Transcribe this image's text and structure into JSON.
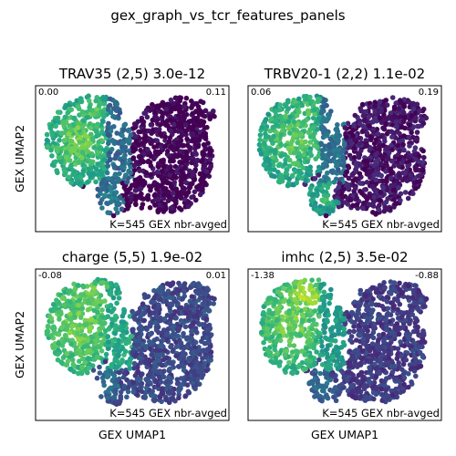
{
  "suptitle": "gex_graph_vs_tcr_features_panels",
  "colormap": [
    "#440154",
    "#482878",
    "#3e4989",
    "#31688e",
    "#26828e",
    "#1f9e89",
    "#35b779",
    "#6ece58",
    "#b5de2b",
    "#fde725"
  ],
  "chart_data": [
    {
      "type": "scatter",
      "title": "TRAV35 (2,5) 3.0e-12",
      "xlabel": "",
      "ylabel": "GEX UMAP2",
      "colorbar_min": "0.00",
      "colorbar_max": "0.11",
      "annotation": "K=545 GEX nbr-avged",
      "grid": false,
      "pattern": "left cluster high (yellow-green), right cluster low (dark purple)"
    },
    {
      "type": "scatter",
      "title": "TRBV20-1 (2,2) 1.1e-02",
      "xlabel": "",
      "ylabel": "",
      "colorbar_min": "0.06",
      "colorbar_max": "0.19",
      "annotation": "K=545 GEX nbr-avged",
      "grid": false,
      "pattern": "left cluster and lower stem high, right cluster low"
    },
    {
      "type": "scatter",
      "title": "charge (5,5) 1.9e-02",
      "xlabel": "GEX UMAP1",
      "ylabel": "GEX UMAP2",
      "colorbar_min": "-0.08",
      "colorbar_max": "0.01",
      "annotation": "K=545 GEX nbr-avged",
      "grid": false,
      "pattern": "left cluster high, right cluster teal-blue"
    },
    {
      "type": "scatter",
      "title": "imhc (2,5) 3.5e-02",
      "xlabel": "GEX UMAP1",
      "ylabel": "",
      "colorbar_min": "-1.38",
      "colorbar_max": "-0.88",
      "annotation": "K=545 GEX nbr-avged",
      "grid": false,
      "pattern": "upper-left cluster high, right cluster blue-teal"
    }
  ]
}
